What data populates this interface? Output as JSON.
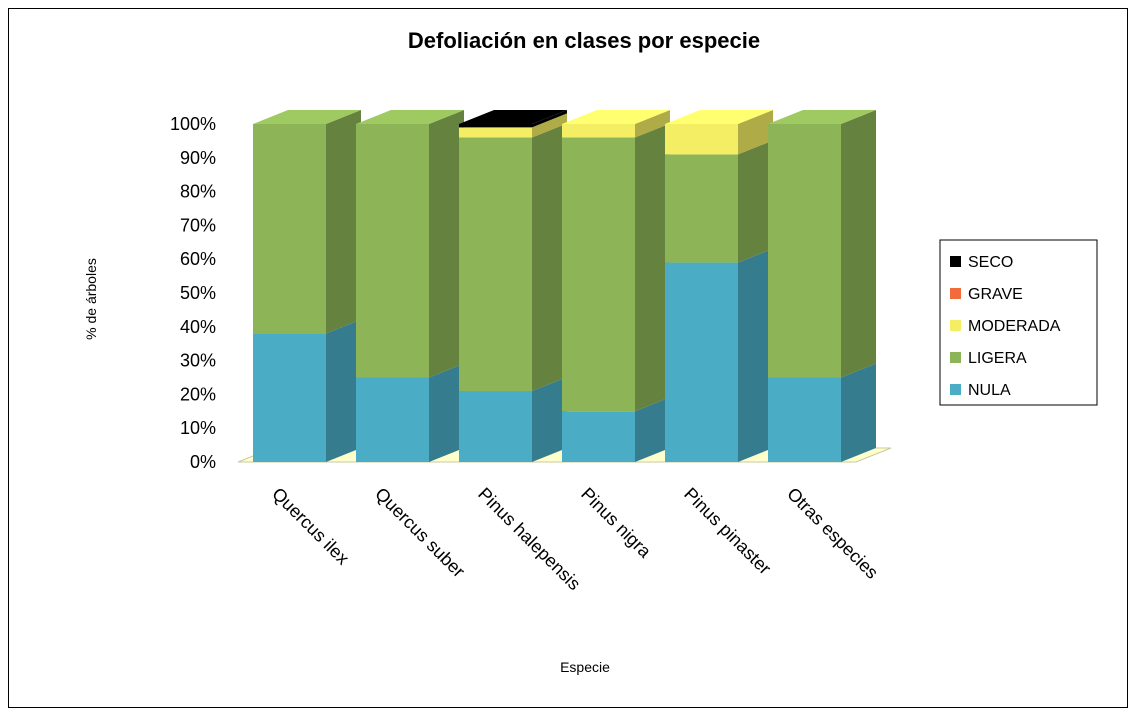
{
  "chart_data": {
    "type": "bar",
    "stacked": true,
    "percent_stacked": true,
    "style": "3d",
    "title": "Defoliación en clases por especie",
    "xlabel": "Especie",
    "ylabel": "% de árboles",
    "ylim": [
      0,
      100
    ],
    "yticks": [
      "0%",
      "10%",
      "20%",
      "30%",
      "40%",
      "50%",
      "60%",
      "70%",
      "80%",
      "90%",
      "100%"
    ],
    "categories": [
      "Quercus ilex",
      "Quercus suber",
      "Pinus halepensis",
      "Pinus nigra",
      "Pinus pinaster",
      "Otras especies"
    ],
    "series": [
      {
        "name": "NULA",
        "color": "#4bacc6",
        "values": [
          38,
          25,
          21,
          15,
          59,
          25
        ]
      },
      {
        "name": "LIGERA",
        "color": "#8db457",
        "values": [
          62,
          75,
          75,
          81,
          32,
          75
        ]
      },
      {
        "name": "MODERADA",
        "color": "#f3ee63",
        "values": [
          0,
          0,
          3,
          4,
          9,
          0
        ]
      },
      {
        "name": "GRAVE",
        "color": "#f26b3a",
        "values": [
          0,
          0,
          0,
          0,
          0,
          0
        ]
      },
      {
        "name": "SECO",
        "color": "#000000",
        "values": [
          0,
          0,
          1,
          0,
          0,
          0
        ]
      }
    ],
    "legend_position": "right",
    "legend_order": [
      "SECO",
      "GRAVE",
      "MODERADA",
      "LIGERA",
      "NULA"
    ],
    "floor_color": "#ffffcc",
    "grid": false
  }
}
